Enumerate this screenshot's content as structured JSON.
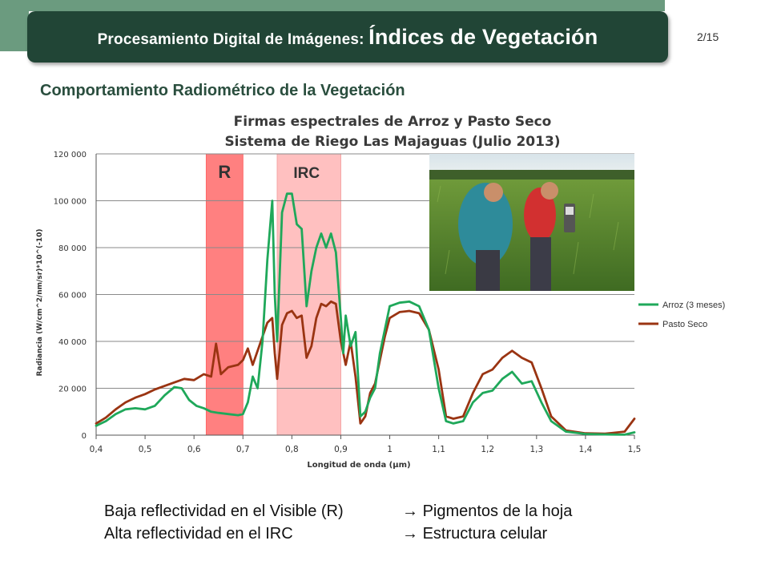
{
  "header": {
    "title_prefix": "Procesamiento Digital de Imágenes:",
    "title_main": "Índices de Vegetación",
    "page": "2/15"
  },
  "subtitle": "Comportamiento Radiométrico de la Vegetación",
  "chart_data": {
    "type": "line",
    "title_line1": "Firmas espectrales de Arroz y Pasto Seco",
    "title_line2": "Sistema de Riego Las Majaguas (Julio 2013)",
    "xlabel": "Longitud de onda (μm)",
    "ylabel": "Radiancia (W/cm^2/nm/sr)*10^(-10)",
    "xlim": [
      0.4,
      1.5
    ],
    "ylim": [
      0,
      120000
    ],
    "x_ticks": [
      "0,4",
      "0,5",
      "0,6",
      "0,7",
      "0,8",
      "0,9",
      "1",
      "1,1",
      "1,2",
      "1,3",
      "1,4",
      "1,5"
    ],
    "y_ticks": [
      "0",
      "20 000",
      "40 000",
      "60 000",
      "80 000",
      "100 000",
      "120 000"
    ],
    "grid": "horizontal",
    "legend_position": "right",
    "bands": [
      {
        "label": "R",
        "x0": 0.625,
        "x1": 0.7,
        "color": "#ff8080"
      },
      {
        "label": "IRC",
        "x0": 0.77,
        "x1": 0.9,
        "color": "#ffc0c0"
      }
    ],
    "series": [
      {
        "name": "Arroz (3 meses)",
        "color": "#1fa85a",
        "points": [
          [
            0.4,
            4000
          ],
          [
            0.42,
            6000
          ],
          [
            0.44,
            9000
          ],
          [
            0.46,
            11000
          ],
          [
            0.48,
            11500
          ],
          [
            0.5,
            11000
          ],
          [
            0.52,
            12500
          ],
          [
            0.54,
            17000
          ],
          [
            0.56,
            20500
          ],
          [
            0.575,
            20000
          ],
          [
            0.59,
            15000
          ],
          [
            0.605,
            12500
          ],
          [
            0.62,
            11500
          ],
          [
            0.635,
            10000
          ],
          [
            0.65,
            9500
          ],
          [
            0.67,
            9000
          ],
          [
            0.69,
            8500
          ],
          [
            0.7,
            9000
          ],
          [
            0.71,
            14000
          ],
          [
            0.72,
            25000
          ],
          [
            0.73,
            20000
          ],
          [
            0.74,
            40000
          ],
          [
            0.75,
            75000
          ],
          [
            0.76,
            100000
          ],
          [
            0.765,
            60000
          ],
          [
            0.77,
            40000
          ],
          [
            0.78,
            95000
          ],
          [
            0.79,
            103000
          ],
          [
            0.8,
            103000
          ],
          [
            0.81,
            90000
          ],
          [
            0.82,
            88000
          ],
          [
            0.83,
            55000
          ],
          [
            0.84,
            70000
          ],
          [
            0.85,
            80000
          ],
          [
            0.86,
            86000
          ],
          [
            0.87,
            80000
          ],
          [
            0.88,
            86000
          ],
          [
            0.89,
            78000
          ],
          [
            0.9,
            50000
          ],
          [
            0.905,
            35000
          ],
          [
            0.91,
            51000
          ],
          [
            0.92,
            38000
          ],
          [
            0.93,
            44000
          ],
          [
            0.94,
            8000
          ],
          [
            0.95,
            10000
          ],
          [
            0.96,
            16000
          ],
          [
            0.97,
            20000
          ],
          [
            0.98,
            35000
          ],
          [
            0.99,
            45000
          ],
          [
            1.0,
            55000
          ],
          [
            1.02,
            56500
          ],
          [
            1.04,
            57000
          ],
          [
            1.06,
            55000
          ],
          [
            1.08,
            45000
          ],
          [
            1.1,
            20000
          ],
          [
            1.115,
            6000
          ],
          [
            1.13,
            5000
          ],
          [
            1.15,
            6000
          ],
          [
            1.17,
            14000
          ],
          [
            1.19,
            18000
          ],
          [
            1.21,
            19000
          ],
          [
            1.23,
            24000
          ],
          [
            1.25,
            27000
          ],
          [
            1.27,
            22000
          ],
          [
            1.29,
            23000
          ],
          [
            1.31,
            14000
          ],
          [
            1.33,
            6000
          ],
          [
            1.36,
            1500
          ],
          [
            1.4,
            500
          ],
          [
            1.44,
            300
          ],
          [
            1.48,
            200
          ],
          [
            1.5,
            1200
          ]
        ]
      },
      {
        "name": "Pasto Seco",
        "color": "#9a3412",
        "points": [
          [
            0.4,
            5000
          ],
          [
            0.42,
            7500
          ],
          [
            0.44,
            11000
          ],
          [
            0.46,
            14000
          ],
          [
            0.48,
            16000
          ],
          [
            0.5,
            17500
          ],
          [
            0.52,
            19500
          ],
          [
            0.54,
            21000
          ],
          [
            0.56,
            22500
          ],
          [
            0.58,
            24000
          ],
          [
            0.6,
            23500
          ],
          [
            0.62,
            26000
          ],
          [
            0.635,
            25000
          ],
          [
            0.645,
            39000
          ],
          [
            0.655,
            26000
          ],
          [
            0.67,
            29000
          ],
          [
            0.69,
            30000
          ],
          [
            0.7,
            32000
          ],
          [
            0.71,
            37000
          ],
          [
            0.72,
            30000
          ],
          [
            0.73,
            36000
          ],
          [
            0.74,
            42000
          ],
          [
            0.75,
            48000
          ],
          [
            0.76,
            50000
          ],
          [
            0.765,
            35000
          ],
          [
            0.77,
            24000
          ],
          [
            0.78,
            47000
          ],
          [
            0.79,
            52000
          ],
          [
            0.8,
            53000
          ],
          [
            0.81,
            50000
          ],
          [
            0.82,
            51000
          ],
          [
            0.83,
            33000
          ],
          [
            0.84,
            38000
          ],
          [
            0.85,
            50000
          ],
          [
            0.86,
            56000
          ],
          [
            0.87,
            55000
          ],
          [
            0.88,
            57000
          ],
          [
            0.89,
            56000
          ],
          [
            0.9,
            40000
          ],
          [
            0.91,
            30000
          ],
          [
            0.92,
            40000
          ],
          [
            0.93,
            25000
          ],
          [
            0.94,
            5000
          ],
          [
            0.95,
            8000
          ],
          [
            0.96,
            18000
          ],
          [
            0.97,
            22000
          ],
          [
            0.98,
            32000
          ],
          [
            0.99,
            42000
          ],
          [
            1.0,
            50000
          ],
          [
            1.02,
            52500
          ],
          [
            1.04,
            53000
          ],
          [
            1.06,
            52000
          ],
          [
            1.08,
            45000
          ],
          [
            1.1,
            28000
          ],
          [
            1.115,
            8000
          ],
          [
            1.13,
            7000
          ],
          [
            1.15,
            8000
          ],
          [
            1.17,
            18000
          ],
          [
            1.19,
            26000
          ],
          [
            1.21,
            28000
          ],
          [
            1.23,
            33000
          ],
          [
            1.25,
            36000
          ],
          [
            1.27,
            33000
          ],
          [
            1.29,
            31000
          ],
          [
            1.31,
            20000
          ],
          [
            1.33,
            8000
          ],
          [
            1.36,
            2000
          ],
          [
            1.4,
            800
          ],
          [
            1.44,
            600
          ],
          [
            1.48,
            1500
          ],
          [
            1.5,
            7000
          ]
        ]
      }
    ]
  },
  "photo": {
    "icon": "field-workers-photo"
  },
  "bottom": {
    "line1_left": "Baja reflectividad en el Visible (R)",
    "line1_right": "Pigmentos de la hoja",
    "line2_left": "Alta reflectividad  en el IRC",
    "line2_right": "Estructura celular",
    "arrow": "→"
  }
}
